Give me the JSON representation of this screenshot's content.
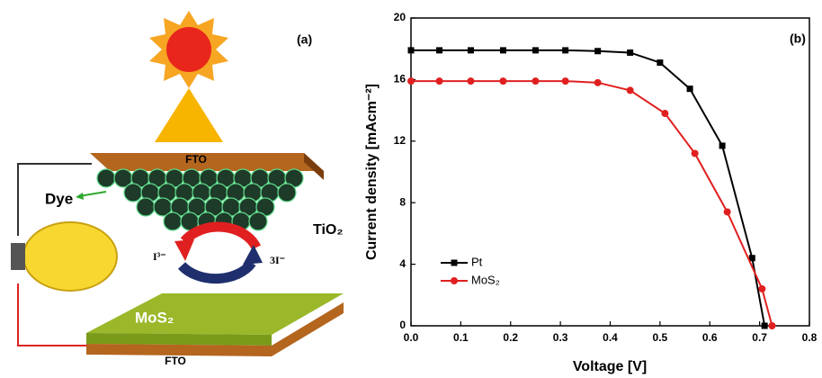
{
  "diagram": {
    "panel_label": "(a)",
    "fto_top": "FTO",
    "dye": "Dye",
    "tio2": "TiO₂",
    "i3": "I³⁻",
    "three_i": "3I⁻",
    "mos2": "MoS₂",
    "fto_bottom": "FTO"
  },
  "chart_data": {
    "type": "line",
    "panel_label": "(b)",
    "x_label": "Voltage [V]",
    "y_label": "Current density [mAcm⁻²]",
    "xlim": [
      0,
      0.8
    ],
    "xticks": [
      {
        "value": 0,
        "label": "0.0"
      },
      0.1,
      0.2,
      0.3,
      0.4,
      0.5,
      0.6,
      0.7,
      0.8
    ],
    "ylim": [
      0,
      20
    ],
    "yticks": [
      0,
      4,
      8,
      12,
      16,
      20
    ],
    "legend": "lower-left",
    "series": [
      {
        "name": "Pt",
        "color": "#000000",
        "marker": "square",
        "x": [
          0.0,
          0.057,
          0.12,
          0.185,
          0.25,
          0.31,
          0.375,
          0.44,
          0.5,
          0.56,
          0.625,
          0.685,
          0.71
        ],
        "values": [
          17.9,
          17.9,
          17.9,
          17.9,
          17.9,
          17.9,
          17.85,
          17.75,
          17.1,
          15.4,
          11.7,
          4.4,
          0
        ]
      },
      {
        "name": "MoS₂",
        "color": "#e02020",
        "marker": "circle",
        "x": [
          0.0,
          0.057,
          0.12,
          0.185,
          0.25,
          0.31,
          0.375,
          0.44,
          0.51,
          0.57,
          0.635,
          0.705,
          0.725
        ],
        "values": [
          15.9,
          15.9,
          15.9,
          15.9,
          15.9,
          15.9,
          15.8,
          15.3,
          13.8,
          11.2,
          7.4,
          2.4,
          0
        ]
      }
    ]
  }
}
